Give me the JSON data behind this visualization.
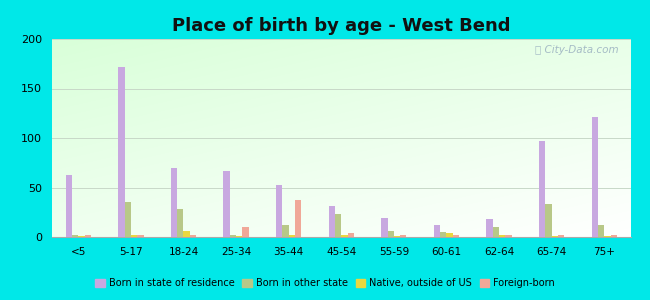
{
  "title": "Place of birth by age - West Bend",
  "categories": [
    "<5",
    "5-17",
    "18-24",
    "25-34",
    "35-44",
    "45-54",
    "55-59",
    "60-61",
    "62-64",
    "65-74",
    "75+"
  ],
  "series": {
    "Born in state of residence": [
      63,
      172,
      70,
      67,
      53,
      31,
      19,
      12,
      18,
      97,
      121
    ],
    "Born in other state": [
      2,
      35,
      28,
      2,
      12,
      23,
      6,
      5,
      10,
      33,
      12
    ],
    "Native, outside of US": [
      1,
      2,
      6,
      1,
      2,
      2,
      1,
      4,
      2,
      1,
      1
    ],
    "Foreign-born": [
      2,
      2,
      2,
      10,
      37,
      4,
      2,
      2,
      2,
      2,
      2
    ]
  },
  "colors": {
    "Born in state of residence": "#c8a8e0",
    "Born in other state": "#b8c888",
    "Native, outside of US": "#e8d840",
    "Foreign-born": "#f0a898"
  },
  "ylim": [
    0,
    200
  ],
  "yticks": [
    0,
    50,
    100,
    150,
    200
  ],
  "background_color": "#00e8e8",
  "grid_color": "#c8d8c8",
  "title_fontsize": 13,
  "bar_width": 0.12,
  "watermark": "City-Data.com"
}
